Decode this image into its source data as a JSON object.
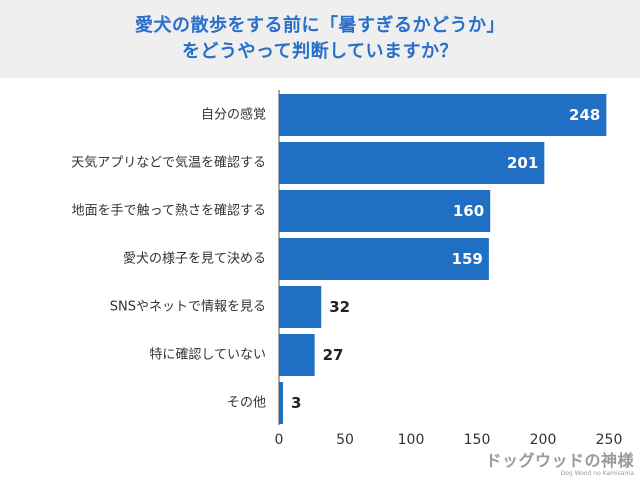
{
  "title_lines": [
    "愛犬の散歩をする前に「暑すぎるかどうか」",
    "をどうやって判断していますか？"
  ],
  "colors": {
    "bar": "#1f6fc5",
    "title": "#2a6fc9",
    "axis": "#555555"
  },
  "chart_data": {
    "type": "bar",
    "orientation": "horizontal",
    "categories": [
      "自分の感覚",
      "天気アプリなどで気温を確認する",
      "地面を手で触って熱さを確認する",
      "愛犬の様子を見て決める",
      "SNSやネットで情報を見る",
      "特に確認していない",
      "その他"
    ],
    "values": [
      248,
      201,
      160,
      159,
      32,
      27,
      3
    ],
    "xlim": [
      0,
      250
    ],
    "xticks": [
      0,
      50,
      100,
      150,
      200,
      250
    ],
    "grid": false
  },
  "watermark": {
    "main": "ドッグウッドの神様",
    "sub": "Dog Wood no Kamisama"
  }
}
